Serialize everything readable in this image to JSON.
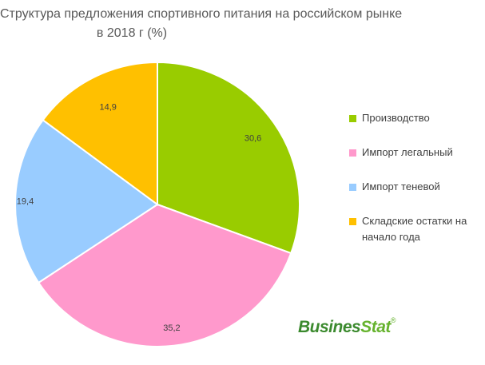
{
  "chart_data": {
    "type": "pie",
    "title": "Структура предложения спортивного питания на российском рынке",
    "subtitle": "в 2018 г (%)",
    "categories": [
      "Производство",
      "Импорт легальный",
      "Импорт теневой",
      "Складские остатки на начало года"
    ],
    "values": [
      30.6,
      35.2,
      19.4,
      14.9
    ],
    "value_labels": [
      "30,6",
      "35,2",
      "19,4",
      "14,9"
    ],
    "colors": [
      "#99cc00",
      "#ff99cc",
      "#99ccff",
      "#ffc000"
    ],
    "legend_position": "right"
  },
  "legend": {
    "items": [
      {
        "label": "Производство",
        "color": "#99cc00"
      },
      {
        "label": "Импорт легальный",
        "color": "#ff99cc"
      },
      {
        "label": "Импорт теневой",
        "color": "#99ccff"
      },
      {
        "label": "Складские остатки на начало года",
        "color": "#ffc000"
      }
    ]
  },
  "logo": {
    "part1": "Busines",
    "part2": "Stat",
    "mark": "®"
  }
}
